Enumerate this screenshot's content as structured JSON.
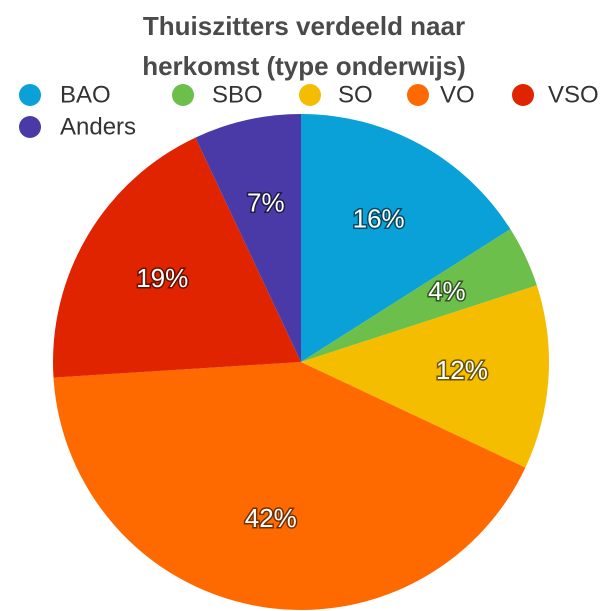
{
  "chart_data": {
    "type": "pie",
    "title": "Thuiszitters verdeeld naar herkomst (type onderwijs)",
    "categories": [
      "BAO",
      "SBO",
      "SO",
      "VO",
      "VSO",
      "Anders"
    ],
    "values": [
      16,
      4,
      12,
      42,
      19,
      7
    ],
    "value_labels": [
      "16%",
      "4%",
      "12%",
      "42%",
      "19%",
      "7%"
    ],
    "colors": [
      "#0aa0d8",
      "#6cbf4a",
      "#f5bd00",
      "#ff6a00",
      "#e02400",
      "#4a3aa8"
    ],
    "legend": "top"
  }
}
